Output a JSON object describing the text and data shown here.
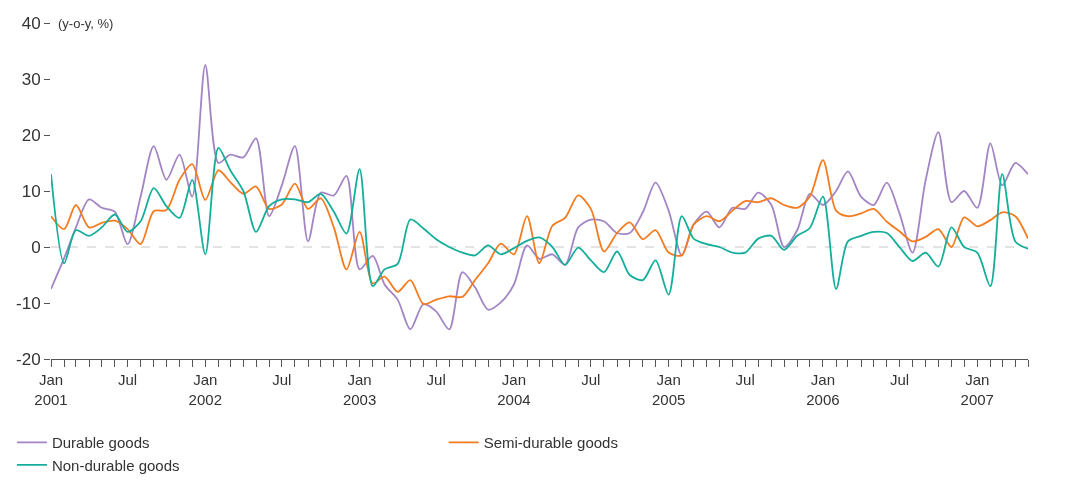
{
  "chart_data": {
    "type": "line",
    "ylabel": "(y-o-y, %)",
    "x": [
      "2001-01",
      "2001-02",
      "2001-03",
      "2001-04",
      "2001-05",
      "2001-06",
      "2001-07",
      "2001-08",
      "2001-09",
      "2001-10",
      "2001-11",
      "2001-12",
      "2002-01",
      "2002-02",
      "2002-03",
      "2002-04",
      "2002-05",
      "2002-06",
      "2002-07",
      "2002-08",
      "2002-09",
      "2002-10",
      "2002-11",
      "2002-12",
      "2003-01",
      "2003-02",
      "2003-03",
      "2003-04",
      "2003-05",
      "2003-06",
      "2003-07",
      "2003-08",
      "2003-09",
      "2003-10",
      "2003-11",
      "2003-12",
      "2004-01",
      "2004-02",
      "2004-03",
      "2004-04",
      "2004-05",
      "2004-06",
      "2004-07",
      "2004-08",
      "2004-09",
      "2004-10",
      "2004-11",
      "2004-12",
      "2005-01",
      "2005-02",
      "2005-03",
      "2005-04",
      "2005-05",
      "2005-06",
      "2005-07",
      "2005-08",
      "2005-09",
      "2005-10",
      "2005-11",
      "2005-12",
      "2006-01",
      "2006-02",
      "2006-03",
      "2006-04",
      "2006-05",
      "2006-06",
      "2006-07",
      "2006-08",
      "2006-09",
      "2006-10",
      "2006-11",
      "2006-12",
      "2007-01",
      "2007-02",
      "2007-03",
      "2007-04",
      "2007-05"
    ],
    "series": [
      {
        "name": "Durable goods",
        "color": "#a385c5",
        "values": [
          -7.5,
          -2,
          3.5,
          8.5,
          7,
          6.3,
          0.5,
          9,
          18,
          12,
          16.5,
          9,
          32.5,
          15,
          16.5,
          16,
          19.4,
          5.5,
          11,
          18,
          1,
          9.7,
          9.2,
          12.7,
          -4,
          -1.6,
          -6.7,
          -9.4,
          -14.7,
          -10.2,
          -11.5,
          -14.7,
          -4.5,
          -7.2,
          -11.2,
          -9.9,
          -6.7,
          0.3,
          -2.1,
          -1.3,
          -3.2,
          3.5,
          4.9,
          4.6,
          2.5,
          2.5,
          6.2,
          11.5,
          6.5,
          -1.5,
          4,
          6.3,
          3.5,
          7,
          6.8,
          9.7,
          7.5,
          0,
          3,
          9.5,
          7.5,
          10,
          13.5,
          9,
          7.5,
          11.5,
          6,
          -1,
          12,
          20.5,
          8,
          10,
          7,
          18.5,
          11,
          15,
          13
        ]
      },
      {
        "name": "Semi-durable goods",
        "color": "#f47b20",
        "values": [
          5.5,
          3.2,
          7.5,
          3.5,
          4.3,
          4.7,
          3.2,
          0.5,
          6.4,
          6.6,
          12,
          14.8,
          8.4,
          13.7,
          11.6,
          9.5,
          10.8,
          6.8,
          7.6,
          11.3,
          6.8,
          8.7,
          3.5,
          -4,
          2.7,
          -6.5,
          -5.3,
          -8,
          -5.9,
          -10.2,
          -9.4,
          -8.8,
          -8.9,
          -5.9,
          -2.9,
          0.6,
          -1.3,
          5.5,
          -2.9,
          3.8,
          5.2,
          9.2,
          6.8,
          -0.8,
          2.5,
          4.4,
          1.4,
          3,
          -1,
          -1.5,
          4,
          5.5,
          4.6,
          6.5,
          8.2,
          8,
          8.7,
          7.5,
          7,
          9,
          15.5,
          6.5,
          5.5,
          6,
          6.8,
          4.5,
          2.8,
          1,
          1.8,
          3.2,
          0,
          5.3,
          3.7,
          4.8,
          6.2,
          5.5,
          1.5
        ]
      },
      {
        "name": "Non-durable goods",
        "color": "#14ae9a",
        "values": [
          13,
          -2.9,
          3,
          2,
          3.5,
          5.8,
          2.7,
          4.6,
          10.5,
          7.3,
          5.2,
          12,
          -1.3,
          17.7,
          13.7,
          10,
          2.7,
          7.3,
          8.5,
          8.5,
          8,
          9.5,
          6.3,
          2.4,
          13.9,
          -7,
          -4,
          -3,
          4.9,
          3.3,
          1.4,
          0,
          -1,
          -1.5,
          0.3,
          -1.3,
          -0.2,
          1.1,
          1.7,
          0,
          -3.2,
          -0.1,
          -2.4,
          -4.5,
          -0.8,
          -5,
          -5.9,
          -2.4,
          -8.5,
          5.5,
          1.5,
          0.5,
          0,
          -1,
          -1,
          1.5,
          2,
          -0.5,
          2,
          3.4,
          9,
          -7.5,
          1,
          2,
          2.7,
          2.5,
          0,
          -2.5,
          -1,
          -3.5,
          3.5,
          0,
          -1,
          -7,
          13,
          1,
          -0.3
        ]
      }
    ],
    "xlim": [
      "2001-01",
      "2007-05"
    ],
    "xticks": [
      {
        "value": "2001-01",
        "label": "Jan\n2001"
      },
      {
        "value": "2001-02",
        "label": null
      },
      {
        "value": "2001-03",
        "label": null
      },
      {
        "value": "2001-04",
        "label": null
      },
      {
        "value": "2001-05",
        "label": null
      },
      {
        "value": "2001-06",
        "label": null
      },
      {
        "value": "2001-07",
        "label": "Jul"
      },
      {
        "value": "2001-08",
        "label": null
      },
      {
        "value": "2001-09",
        "label": null
      },
      {
        "value": "2001-10",
        "label": null
      },
      {
        "value": "2001-11",
        "label": null
      },
      {
        "value": "2001-12",
        "label": null
      },
      {
        "value": "2002-01",
        "label": "Jan\n2002"
      },
      {
        "value": "2002-02",
        "label": null
      },
      {
        "value": "2002-03",
        "label": null
      },
      {
        "value": "2002-04",
        "label": null
      },
      {
        "value": "2002-05",
        "label": null
      },
      {
        "value": "2002-06",
        "label": null
      },
      {
        "value": "2002-07",
        "label": "Jul"
      },
      {
        "value": "2002-08",
        "label": null
      },
      {
        "value": "2002-09",
        "label": null
      },
      {
        "value": "2002-10",
        "label": null
      },
      {
        "value": "2002-11",
        "label": null
      },
      {
        "value": "2002-12",
        "label": null
      },
      {
        "value": "2003-01",
        "label": "Jan\n2003"
      },
      {
        "value": "2003-02",
        "label": null
      },
      {
        "value": "2003-03",
        "label": null
      },
      {
        "value": "2003-04",
        "label": null
      },
      {
        "value": "2003-05",
        "label": null
      },
      {
        "value": "2003-06",
        "label": null
      },
      {
        "value": "2003-07",
        "label": "Jul"
      },
      {
        "value": "2003-08",
        "label": null
      },
      {
        "value": "2003-09",
        "label": null
      },
      {
        "value": "2003-10",
        "label": null
      },
      {
        "value": "2003-11",
        "label": null
      },
      {
        "value": "2003-12",
        "label": null
      },
      {
        "value": "2004-01",
        "label": "Jan\n2004"
      },
      {
        "value": "2004-02",
        "label": null
      },
      {
        "value": "2004-03",
        "label": null
      },
      {
        "value": "2004-04",
        "label": null
      },
      {
        "value": "2004-05",
        "label": null
      },
      {
        "value": "2004-06",
        "label": null
      },
      {
        "value": "2004-07",
        "label": "Jul"
      },
      {
        "value": "2004-08",
        "label": null
      },
      {
        "value": "2004-09",
        "label": null
      },
      {
        "value": "2004-10",
        "label": null
      },
      {
        "value": "2004-11",
        "label": null
      },
      {
        "value": "2004-12",
        "label": null
      },
      {
        "value": "2005-01",
        "label": "Jan\n2005"
      },
      {
        "value": "2005-02",
        "label": null
      },
      {
        "value": "2005-03",
        "label": null
      },
      {
        "value": "2005-04",
        "label": null
      },
      {
        "value": "2005-05",
        "label": null
      },
      {
        "value": "2005-06",
        "label": null
      },
      {
        "value": "2005-07",
        "label": "Jul"
      },
      {
        "value": "2005-08",
        "label": null
      },
      {
        "value": "2005-09",
        "label": null
      },
      {
        "value": "2005-10",
        "label": null
      },
      {
        "value": "2005-11",
        "label": null
      },
      {
        "value": "2005-12",
        "label": null
      },
      {
        "value": "2006-01",
        "label": "Jan\n2006"
      },
      {
        "value": "2006-02",
        "label": null
      },
      {
        "value": "2006-03",
        "label": null
      },
      {
        "value": "2006-04",
        "label": null
      },
      {
        "value": "2006-05",
        "label": null
      },
      {
        "value": "2006-06",
        "label": null
      },
      {
        "value": "2006-07",
        "label": "Jul"
      },
      {
        "value": "2006-08",
        "label": null
      },
      {
        "value": "2006-09",
        "label": null
      },
      {
        "value": "2006-10",
        "label": null
      },
      {
        "value": "2006-11",
        "label": null
      },
      {
        "value": "2006-12",
        "label": null
      },
      {
        "value": "2007-01",
        "label": "Jan\n2007"
      },
      {
        "value": "2007-02",
        "label": null
      },
      {
        "value": "2007-03",
        "label": null
      },
      {
        "value": "2007-04",
        "label": null
      },
      {
        "value": "2007-05",
        "label": null
      }
    ],
    "ylim": [
      -20,
      40
    ],
    "yticks": [
      -20,
      -10,
      0,
      10,
      20,
      30,
      40
    ],
    "ref_lines": [
      {
        "axis": "y",
        "value": 0,
        "color": "#c8c8c8",
        "line_style": "dashed"
      }
    ],
    "grid": false,
    "legend": "bottom",
    "line_style": "solid"
  }
}
